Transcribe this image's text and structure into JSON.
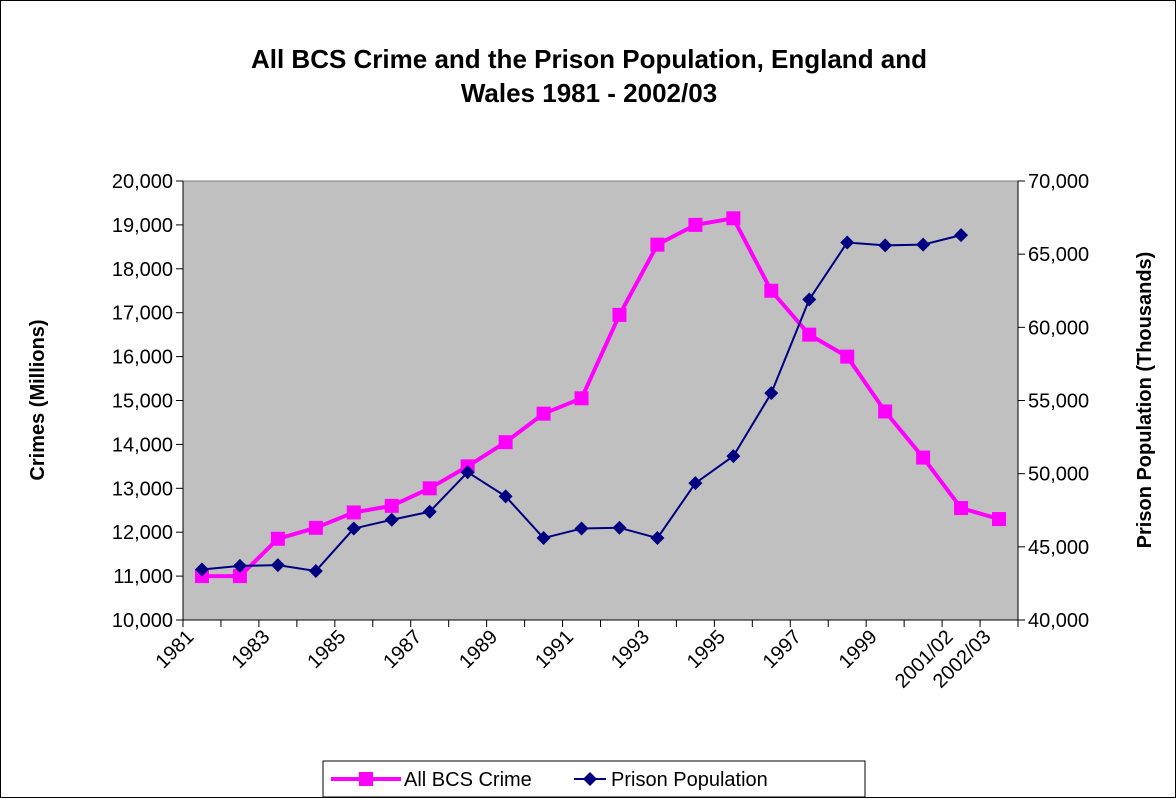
{
  "chart_data": {
    "type": "line",
    "title": [
      "All BCS Crime and the Prison Population, England and",
      "Wales 1981 - 2002/03"
    ],
    "ylabel_left": "Crimes (Millions)",
    "ylabel_right": "Prison Population (Thousands)",
    "ylim_left": [
      10000,
      20000
    ],
    "ylim_right": [
      40000,
      70000
    ],
    "yticks_left": [
      "10,000",
      "11,000",
      "12,000",
      "13,000",
      "14,000",
      "15,000",
      "16,000",
      "17,000",
      "18,000",
      "19,000",
      "20,000"
    ],
    "yticks_right": [
      "40,000",
      "45,000",
      "50,000",
      "55,000",
      "60,000",
      "65,000",
      "70,000"
    ],
    "categories": [
      "1981",
      "1982",
      "1983",
      "1984",
      "1985",
      "1986",
      "1987",
      "1988",
      "1989",
      "1990",
      "1991",
      "1992",
      "1993",
      "1994",
      "1995",
      "1996",
      "1997",
      "1998",
      "1999",
      "2000",
      "2001/02",
      "2002/03"
    ],
    "x_tick_labels": [
      {
        "index": 0,
        "label": "1981"
      },
      {
        "index": 2,
        "label": "1983"
      },
      {
        "index": 4,
        "label": "1985"
      },
      {
        "index": 6,
        "label": "1987"
      },
      {
        "index": 8,
        "label": "1989"
      },
      {
        "index": 10,
        "label": "1991"
      },
      {
        "index": 12,
        "label": "1993"
      },
      {
        "index": 14,
        "label": "1995"
      },
      {
        "index": 16,
        "label": "1997"
      },
      {
        "index": 18,
        "label": "1999"
      },
      {
        "index": 20,
        "label": "2001/02"
      },
      {
        "index": 21,
        "label": "2002/03"
      }
    ],
    "series": [
      {
        "name": "All BCS Crime",
        "axis": "left",
        "color": "#FF00FF",
        "marker": "square",
        "values": [
          11000,
          11000,
          11850,
          12100,
          12450,
          12600,
          13000,
          13500,
          14050,
          14700,
          15050,
          16950,
          18550,
          19000,
          19150,
          17500,
          16500,
          16000,
          14750,
          13700,
          12550,
          12300
        ]
      },
      {
        "name": "Prison Population",
        "axis": "right",
        "color": "#000080",
        "marker": "diamond",
        "values": [
          43450,
          43700,
          43750,
          43350,
          46250,
          46850,
          47400,
          50100,
          48450,
          45600,
          46250,
          46300,
          45600,
          49350,
          51200,
          55500,
          61900,
          65800,
          65600,
          65650,
          66300,
          null
        ]
      }
    ],
    "grid": false,
    "plot_background": "#C0C0C0",
    "legend_position": "bottom"
  }
}
